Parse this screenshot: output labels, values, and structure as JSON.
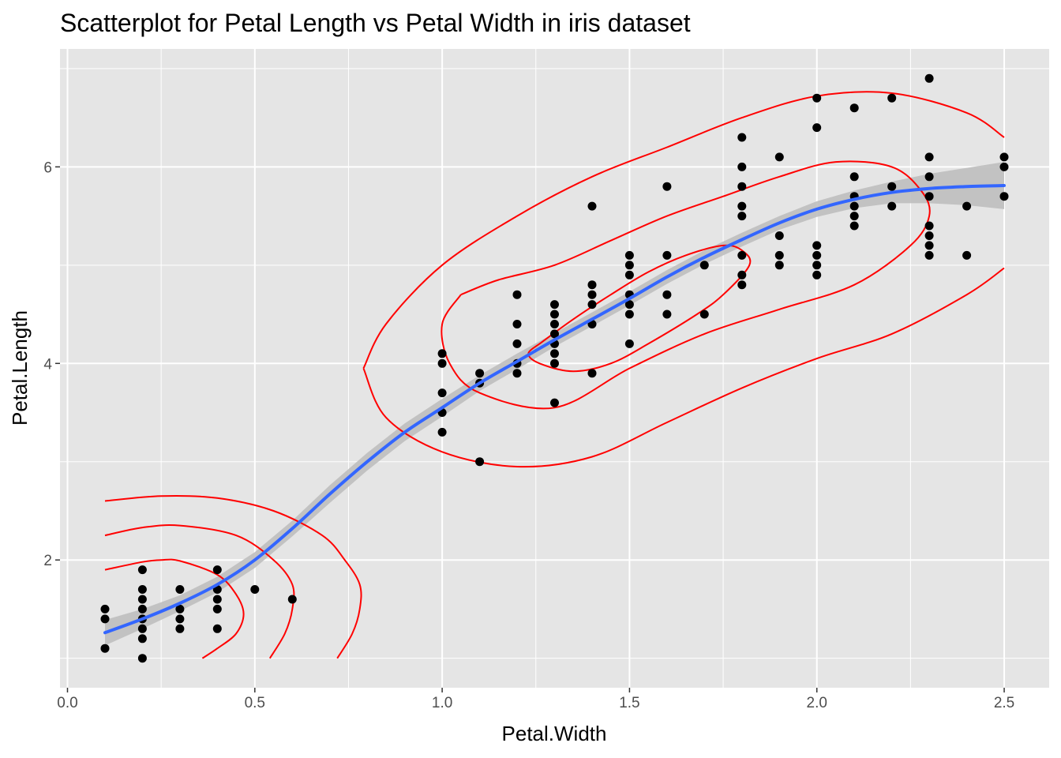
{
  "chart_data": {
    "type": "scatter",
    "title": "Scatterplot for Petal Length vs Petal Width in iris dataset",
    "xlabel": "Petal.Width",
    "ylabel": "Petal.Length",
    "xlim": [
      -0.02,
      2.62
    ],
    "ylim": [
      0.7,
      7.2
    ],
    "x_ticks": [
      0.0,
      0.5,
      1.0,
      1.5,
      2.0,
      2.5
    ],
    "x_tick_labels": [
      "0.0",
      "0.5",
      "1.0",
      "1.5",
      "2.0",
      "2.5"
    ],
    "y_ticks": [
      2,
      4,
      6
    ],
    "y_tick_labels": [
      "2",
      "4",
      "6"
    ],
    "grid": true,
    "legend": "none",
    "colors": {
      "panel_background": "#e5e5e5",
      "grid": "#ffffff",
      "points": "#000000",
      "smooth_line": "#3366ff",
      "confidence_band": "#bebebe",
      "contours": "#ff0000"
    },
    "points": [
      [
        0.1,
        1.5
      ],
      [
        0.1,
        1.4
      ],
      [
        0.1,
        1.1
      ],
      [
        0.2,
        1.9
      ],
      [
        0.2,
        1.7
      ],
      [
        0.2,
        1.6
      ],
      [
        0.2,
        1.5
      ],
      [
        0.2,
        1.4
      ],
      [
        0.2,
        1.3
      ],
      [
        0.2,
        1.2
      ],
      [
        0.2,
        1.0
      ],
      [
        0.3,
        1.7
      ],
      [
        0.3,
        1.5
      ],
      [
        0.3,
        1.4
      ],
      [
        0.3,
        1.3
      ],
      [
        0.4,
        1.9
      ],
      [
        0.4,
        1.7
      ],
      [
        0.4,
        1.6
      ],
      [
        0.4,
        1.5
      ],
      [
        0.4,
        1.3
      ],
      [
        0.5,
        1.7
      ],
      [
        0.6,
        1.6
      ],
      [
        1.0,
        4.1
      ],
      [
        1.0,
        4.0
      ],
      [
        1.0,
        3.7
      ],
      [
        1.0,
        3.5
      ],
      [
        1.0,
        3.3
      ],
      [
        1.1,
        3.9
      ],
      [
        1.1,
        3.8
      ],
      [
        1.1,
        3.0
      ],
      [
        1.2,
        4.7
      ],
      [
        1.2,
        4.4
      ],
      [
        1.2,
        4.2
      ],
      [
        1.2,
        4.0
      ],
      [
        1.2,
        3.9
      ],
      [
        1.3,
        4.6
      ],
      [
        1.3,
        4.5
      ],
      [
        1.3,
        4.4
      ],
      [
        1.3,
        4.3
      ],
      [
        1.3,
        4.2
      ],
      [
        1.3,
        4.1
      ],
      [
        1.3,
        4.0
      ],
      [
        1.3,
        3.6
      ],
      [
        1.4,
        5.6
      ],
      [
        1.4,
        4.8
      ],
      [
        1.4,
        4.7
      ],
      [
        1.4,
        4.6
      ],
      [
        1.4,
        4.4
      ],
      [
        1.4,
        3.9
      ],
      [
        1.5,
        5.1
      ],
      [
        1.5,
        5.0
      ],
      [
        1.5,
        4.9
      ],
      [
        1.5,
        4.7
      ],
      [
        1.5,
        4.6
      ],
      [
        1.5,
        4.5
      ],
      [
        1.5,
        4.2
      ],
      [
        1.6,
        5.8
      ],
      [
        1.6,
        5.1
      ],
      [
        1.6,
        4.7
      ],
      [
        1.6,
        4.5
      ],
      [
        1.7,
        5.0
      ],
      [
        1.7,
        4.5
      ],
      [
        1.8,
        6.3
      ],
      [
        1.8,
        6.0
      ],
      [
        1.8,
        5.8
      ],
      [
        1.8,
        5.6
      ],
      [
        1.8,
        5.5
      ],
      [
        1.8,
        5.1
      ],
      [
        1.8,
        4.9
      ],
      [
        1.8,
        4.8
      ],
      [
        1.9,
        6.1
      ],
      [
        1.9,
        5.3
      ],
      [
        1.9,
        5.1
      ],
      [
        1.9,
        5.0
      ],
      [
        2.0,
        6.7
      ],
      [
        2.0,
        6.4
      ],
      [
        2.0,
        5.2
      ],
      [
        2.0,
        5.1
      ],
      [
        2.0,
        5.0
      ],
      [
        2.0,
        4.9
      ],
      [
        2.1,
        6.6
      ],
      [
        2.1,
        5.9
      ],
      [
        2.1,
        5.7
      ],
      [
        2.1,
        5.6
      ],
      [
        2.1,
        5.5
      ],
      [
        2.1,
        5.4
      ],
      [
        2.2,
        6.7
      ],
      [
        2.2,
        5.8
      ],
      [
        2.2,
        5.6
      ],
      [
        2.3,
        6.9
      ],
      [
        2.3,
        6.1
      ],
      [
        2.3,
        5.9
      ],
      [
        2.3,
        5.7
      ],
      [
        2.3,
        5.4
      ],
      [
        2.3,
        5.3
      ],
      [
        2.3,
        5.2
      ],
      [
        2.3,
        5.1
      ],
      [
        2.4,
        5.6
      ],
      [
        2.4,
        5.1
      ],
      [
        2.5,
        6.1
      ],
      [
        2.5,
        6.0
      ],
      [
        2.5,
        5.7
      ]
    ],
    "smooth_fit": {
      "method": "loess",
      "x": [
        0.1,
        0.2,
        0.3,
        0.4,
        0.5,
        0.6,
        0.7,
        0.8,
        0.9,
        1.0,
        1.1,
        1.2,
        1.3,
        1.4,
        1.5,
        1.6,
        1.7,
        1.8,
        1.9,
        2.0,
        2.1,
        2.2,
        2.3,
        2.4,
        2.5
      ],
      "y": [
        1.26,
        1.4,
        1.56,
        1.75,
        2.0,
        2.32,
        2.67,
        3.0,
        3.3,
        3.55,
        3.8,
        4.02,
        4.24,
        4.45,
        4.66,
        4.88,
        5.08,
        5.26,
        5.43,
        5.57,
        5.67,
        5.74,
        5.78,
        5.8,
        5.81
      ],
      "band_halfwidth": [
        0.13,
        0.1,
        0.08,
        0.08,
        0.08,
        0.08,
        0.09,
        0.09,
        0.09,
        0.09,
        0.08,
        0.08,
        0.07,
        0.07,
        0.07,
        0.07,
        0.07,
        0.07,
        0.07,
        0.08,
        0.09,
        0.11,
        0.15,
        0.19,
        0.24
      ]
    },
    "density_contours": [
      {
        "level": "inner",
        "x": [
          1.26,
          1.35,
          1.45,
          1.55,
          1.65,
          1.75,
          1.8,
          1.82,
          1.75,
          1.68,
          1.55,
          1.45,
          1.35,
          1.26,
          1.23,
          1.26
        ],
        "y": [
          4.2,
          4.45,
          4.7,
          4.93,
          5.1,
          5.2,
          5.15,
          5.0,
          4.7,
          4.5,
          4.2,
          4.0,
          3.92,
          4.0,
          4.1,
          4.2
        ]
      },
      {
        "level": "middle",
        "x": [
          1.05,
          1.15,
          1.3,
          1.45,
          1.6,
          1.75,
          1.9,
          2.05,
          2.2,
          2.28,
          2.3,
          2.25,
          2.1,
          1.9,
          1.7,
          1.5,
          1.3,
          1.1,
          1.02,
          1.0,
          1.05
        ],
        "y": [
          4.7,
          4.85,
          5.0,
          5.25,
          5.5,
          5.7,
          5.9,
          6.05,
          6.0,
          5.75,
          5.5,
          5.2,
          4.8,
          4.55,
          4.3,
          3.95,
          3.55,
          3.7,
          4.0,
          4.4,
          4.7
        ]
      },
      {
        "level": "outer-upper",
        "x": [
          0.79,
          0.85,
          1.0,
          1.2,
          1.4,
          1.6,
          1.8,
          2.0,
          2.2,
          2.4,
          2.5
        ],
        "y": [
          3.95,
          4.4,
          5.0,
          5.5,
          5.9,
          6.2,
          6.5,
          6.72,
          6.75,
          6.55,
          6.3
        ]
      },
      {
        "level": "outer-lower",
        "x": [
          0.79,
          0.85,
          1.0,
          1.2,
          1.4,
          1.6,
          1.8,
          2.0,
          2.2,
          2.4,
          2.5
        ],
        "y": [
          3.95,
          3.45,
          3.1,
          2.95,
          3.05,
          3.4,
          3.75,
          4.05,
          4.3,
          4.7,
          4.97
        ]
      },
      {
        "level": "low-inner",
        "x": [
          0.1,
          0.2,
          0.25,
          0.3,
          0.4,
          0.45,
          0.47,
          0.45,
          0.4,
          0.36
        ],
        "y": [
          1.9,
          1.98,
          2.0,
          1.99,
          1.85,
          1.65,
          1.45,
          1.25,
          1.1,
          1.0
        ]
      },
      {
        "level": "low-middle",
        "x": [
          0.1,
          0.2,
          0.3,
          0.45,
          0.55,
          0.6,
          0.6,
          0.58,
          0.54
        ],
        "y": [
          2.25,
          2.33,
          2.35,
          2.25,
          2.0,
          1.75,
          1.5,
          1.25,
          1.0
        ]
      },
      {
        "level": "low-outer",
        "x": [
          0.1,
          0.25,
          0.4,
          0.55,
          0.68,
          0.74,
          0.78,
          0.78,
          0.76,
          0.72
        ],
        "y": [
          2.6,
          2.65,
          2.63,
          2.5,
          2.25,
          2.0,
          1.75,
          1.5,
          1.25,
          1.0
        ]
      }
    ]
  }
}
